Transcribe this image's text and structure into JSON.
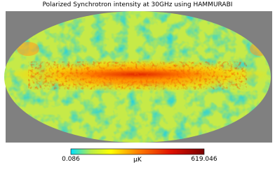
{
  "title": "Polarized Synchrotron intensity at 30GHz using HAMMURABI",
  "colorbar": {
    "min": 0.086,
    "max": 619.046,
    "unit": "μK"
  }
}
